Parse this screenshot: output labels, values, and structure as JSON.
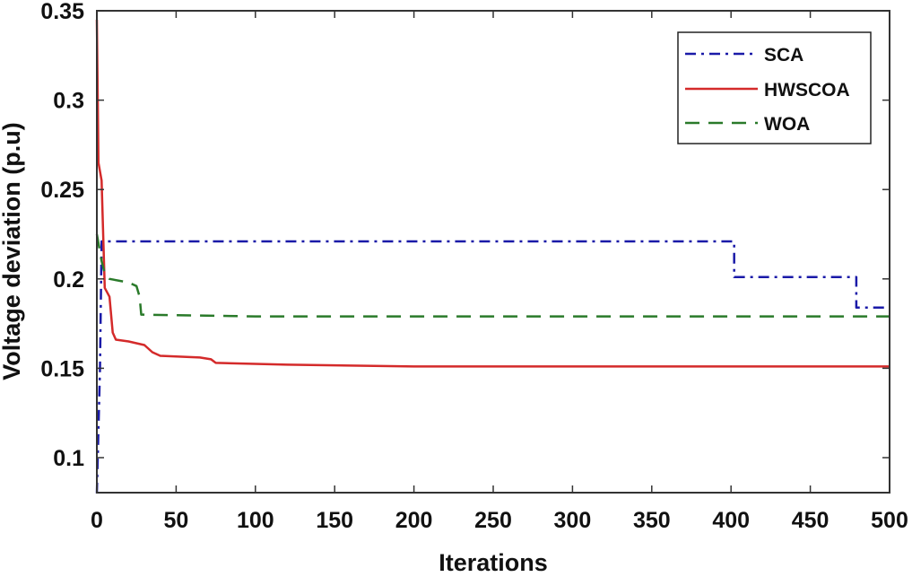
{
  "chart_data": {
    "type": "line",
    "title": "",
    "xlabel": "Iterations",
    "ylabel": "Voltage deviation (p.u)",
    "xlim": [
      0,
      500
    ],
    "ylim": [
      0.08,
      0.35
    ],
    "xticks": [
      0,
      50,
      100,
      150,
      200,
      250,
      300,
      350,
      400,
      450,
      500
    ],
    "xtick_labels": [
      "0",
      "50",
      "100",
      "150",
      "200",
      "250",
      "300",
      "350",
      "400",
      "450",
      "500"
    ],
    "yticks": [
      0.1,
      0.15,
      0.2,
      0.25,
      0.3,
      0.35
    ],
    "ytick_labels": [
      "0.1",
      "0.15",
      "0.2",
      "0.25",
      "0.3",
      "0.35"
    ],
    "grid": false,
    "legend_position": "upper right",
    "series": [
      {
        "name": "SCA",
        "color": "#1a1aa8",
        "style": "dash-dot",
        "x": [
          0,
          2,
          3,
          402,
          402,
          479,
          479,
          500
        ],
        "y": [
          0.08,
          0.15,
          0.221,
          0.221,
          0.201,
          0.201,
          0.184,
          0.184
        ]
      },
      {
        "name": "HWSCOA",
        "color": "#d42a2a",
        "style": "solid",
        "x": [
          0,
          1,
          3,
          5,
          8,
          10,
          12,
          20,
          30,
          35,
          40,
          65,
          72,
          75,
          120,
          200,
          300,
          500
        ],
        "y": [
          0.345,
          0.265,
          0.255,
          0.195,
          0.19,
          0.17,
          0.166,
          0.165,
          0.163,
          0.159,
          0.157,
          0.156,
          0.155,
          0.153,
          0.152,
          0.151,
          0.151,
          0.151
        ]
      },
      {
        "name": "WOA",
        "color": "#2a7a2a",
        "style": "dashed",
        "x": [
          0,
          1,
          3,
          5,
          8,
          20,
          25,
          27,
          28,
          100,
          300,
          500
        ],
        "y": [
          0.225,
          0.22,
          0.21,
          0.203,
          0.2,
          0.198,
          0.196,
          0.19,
          0.18,
          0.179,
          0.179,
          0.179
        ]
      }
    ]
  },
  "legend": {
    "items": [
      {
        "label": "SCA"
      },
      {
        "label": "HWSCOA"
      },
      {
        "label": "WOA"
      }
    ]
  },
  "axes": {
    "xlabel": "Iterations",
    "ylabel": "Voltage deviation (p.u)"
  }
}
